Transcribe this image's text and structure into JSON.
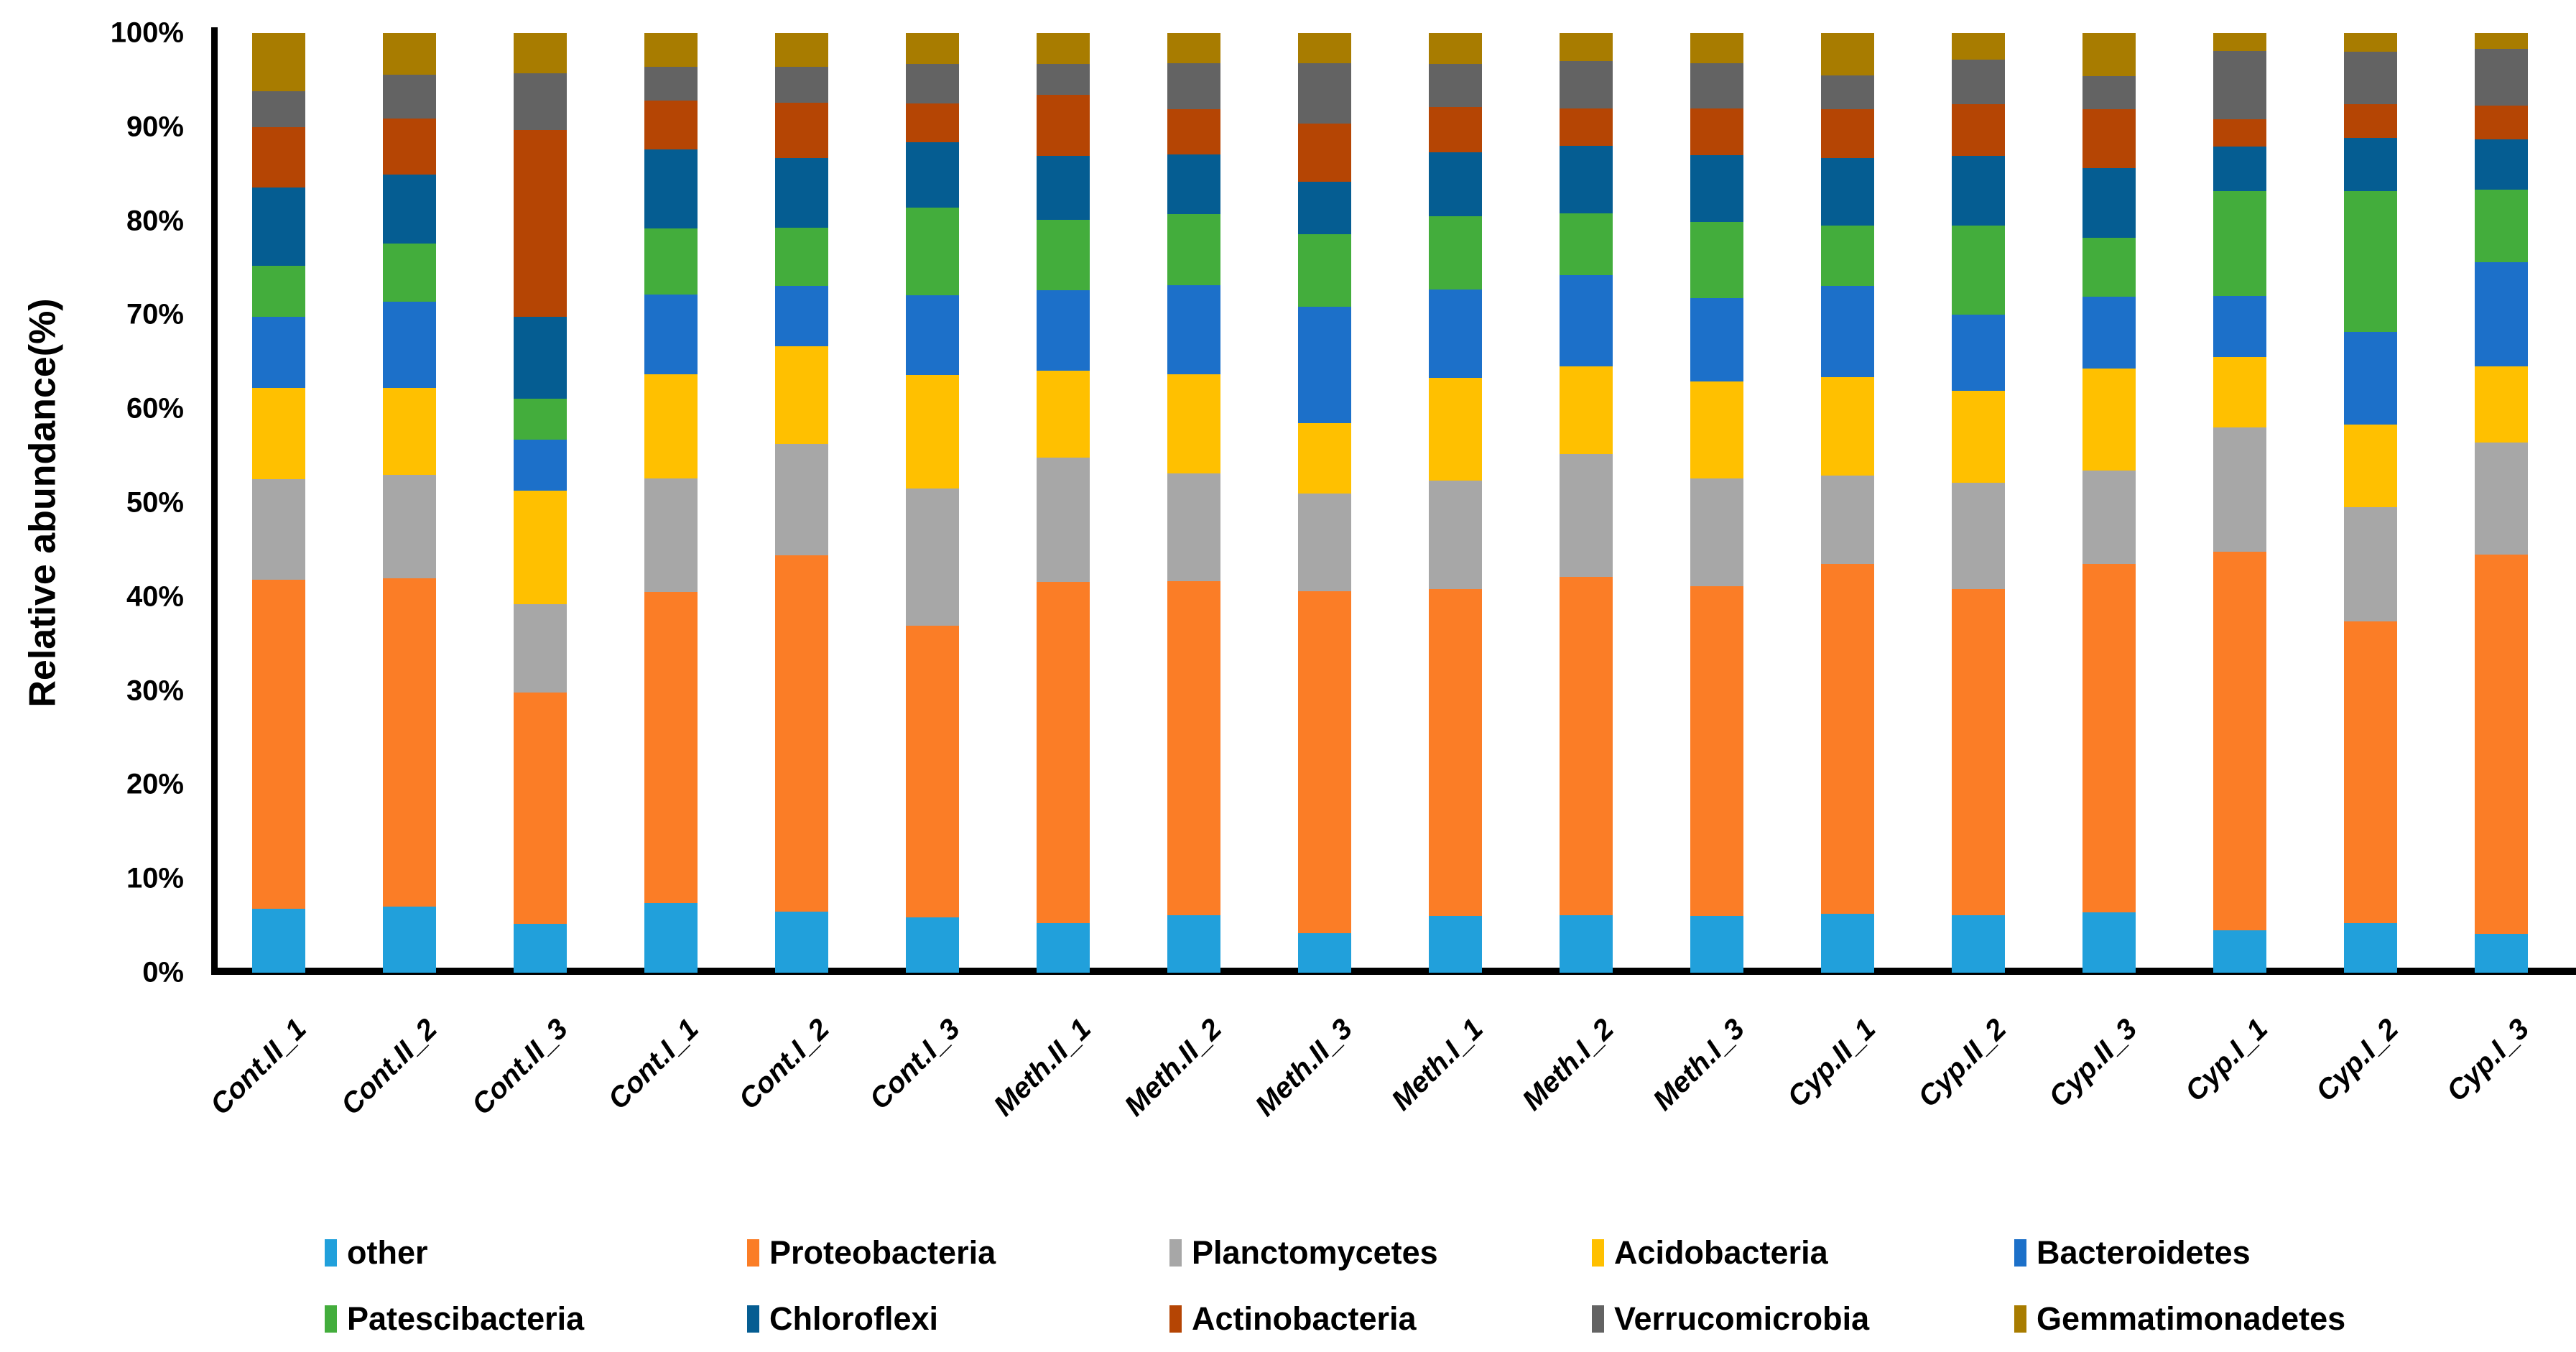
{
  "y_axis": {
    "title": "Relative abundance(%)",
    "tick_labels": [
      "0%",
      "10%",
      "20%",
      "30%",
      "40%",
      "50%",
      "60%",
      "70%",
      "80%",
      "90%",
      "100%"
    ]
  },
  "chart_data": {
    "type": "bar",
    "stacked": true,
    "unit": "percent",
    "ylim": [
      0,
      100
    ],
    "grid": false,
    "legend_position": "bottom",
    "title": "",
    "xlabel": "",
    "ylabel": "Relative abundance(%)",
    "categories": [
      "Cont.II_1",
      "Cont.II_2",
      "Cont.II_3",
      "Cont.I_1",
      "Cont.I_2",
      "Cont.I_3",
      "Meth.II_1",
      "Meth.II_2",
      "Meth.II_3",
      "Meth.I_1",
      "Meth.I_2",
      "Meth.I_3",
      "Cyp.II_1",
      "Cyp.II_2",
      "Cyp.II_3",
      "Cyp.I_1",
      "Cyp.I_2",
      "Cyp.I_3"
    ],
    "series": [
      {
        "name": "other",
        "color": "#21A0DB",
        "values": [
          6.8,
          7.0,
          5.2,
          7.4,
          6.5,
          5.9,
          5.3,
          6.1,
          4.2,
          6.0,
          6.1,
          6.0,
          6.3,
          6.1,
          6.4,
          4.5,
          5.3,
          4.1
        ]
      },
      {
        "name": "Proteobacteria",
        "color": "#FB7D26",
        "values": [
          35.0,
          35.0,
          24.6,
          33.1,
          37.9,
          31.0,
          36.3,
          35.6,
          36.4,
          34.8,
          36.0,
          35.1,
          37.2,
          34.7,
          37.1,
          40.3,
          32.1,
          40.4
        ]
      },
      {
        "name": "Planctomycetes",
        "color": "#A7A7A7",
        "values": [
          10.7,
          11.0,
          9.4,
          12.1,
          11.9,
          14.6,
          13.2,
          11.4,
          10.4,
          11.6,
          13.1,
          11.5,
          9.4,
          11.3,
          9.9,
          13.2,
          12.1,
          11.9
        ]
      },
      {
        "name": "Acidobacteria",
        "color": "#FFC000",
        "values": [
          9.7,
          9.2,
          12.1,
          11.1,
          10.4,
          12.1,
          9.3,
          10.6,
          7.5,
          10.9,
          9.3,
          10.3,
          10.5,
          9.8,
          10.9,
          7.5,
          8.8,
          8.1
        ]
      },
      {
        "name": "Bacteroidetes",
        "color": "#1C70C9",
        "values": [
          7.6,
          9.2,
          5.4,
          8.5,
          6.4,
          8.5,
          8.5,
          9.5,
          12.4,
          9.4,
          9.7,
          8.9,
          9.7,
          8.1,
          7.6,
          6.5,
          9.9,
          11.1
        ]
      },
      {
        "name": "Patescibacteria",
        "color": "#43AD3C",
        "values": [
          5.4,
          6.2,
          4.4,
          7.0,
          6.2,
          9.3,
          7.5,
          7.5,
          7.7,
          7.8,
          6.6,
          8.1,
          6.4,
          9.5,
          6.3,
          11.2,
          15.0,
          7.7
        ]
      },
      {
        "name": "Chloroflexi",
        "color": "#055D92",
        "values": [
          8.4,
          7.3,
          8.7,
          8.4,
          7.4,
          7.0,
          6.8,
          6.4,
          5.6,
          6.8,
          7.2,
          7.1,
          7.2,
          7.4,
          7.4,
          4.7,
          5.6,
          5.4
        ]
      },
      {
        "name": "Actinobacteria",
        "color": "#B54504",
        "values": [
          6.4,
          6.0,
          19.9,
          5.2,
          5.9,
          4.1,
          6.5,
          4.8,
          6.2,
          4.8,
          4.0,
          5.0,
          5.2,
          5.5,
          6.3,
          2.9,
          3.6,
          3.6
        ]
      },
      {
        "name": "Verrucomicrobia",
        "color": "#636363",
        "values": [
          3.8,
          4.7,
          6.0,
          3.6,
          3.8,
          4.2,
          3.3,
          4.9,
          6.4,
          4.6,
          5.0,
          4.8,
          3.6,
          4.8,
          3.5,
          7.3,
          5.6,
          6.0
        ]
      },
      {
        "name": "Gemmatimonadetes",
        "color": "#A87C00",
        "values": [
          6.2,
          4.4,
          4.3,
          3.6,
          3.6,
          3.3,
          3.3,
          3.2,
          3.2,
          3.3,
          3.0,
          3.2,
          4.5,
          2.8,
          4.6,
          1.9,
          2.0,
          1.7
        ]
      }
    ]
  }
}
